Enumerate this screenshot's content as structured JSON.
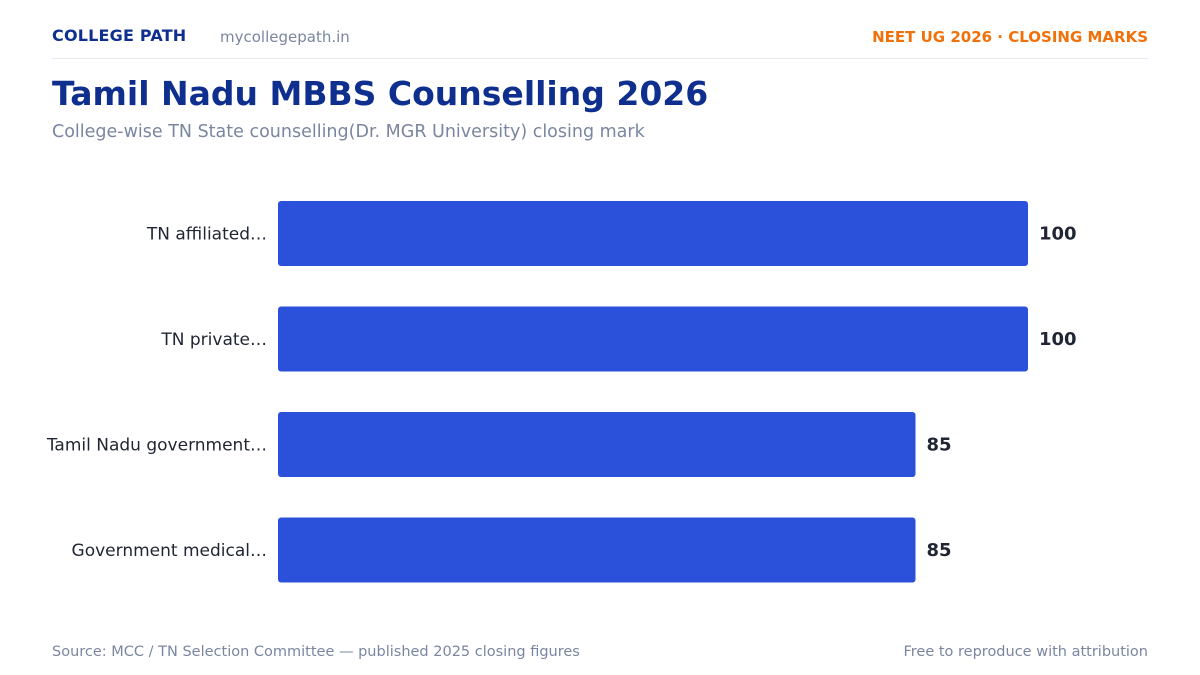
{
  "header": {
    "brand": "COLLEGE PATH",
    "domain": "mycollegepath.in",
    "tag": "NEET UG 2026 · CLOSING MARKS"
  },
  "title": "Tamil Nadu MBBS Counselling 2026",
  "subtitle": "College-wise TN State counselling(Dr. MGR University) closing mark",
  "footer": {
    "source": "Source: MCC / TN Selection Committee — published 2025 closing figures",
    "attribution": "Free to reproduce with attribution"
  },
  "colors": {
    "bar": "#2b50d9",
    "brand": "#0f2f8f",
    "accent": "#f0700a"
  },
  "chart_data": {
    "type": "bar",
    "orientation": "horizontal",
    "categories": [
      "TN affiliated…",
      "TN private…",
      "Tamil Nadu government…",
      "Government medical…"
    ],
    "values": [
      100,
      100,
      85,
      85
    ],
    "xlim": [
      0,
      100
    ],
    "grid": false,
    "legend": "none"
  }
}
